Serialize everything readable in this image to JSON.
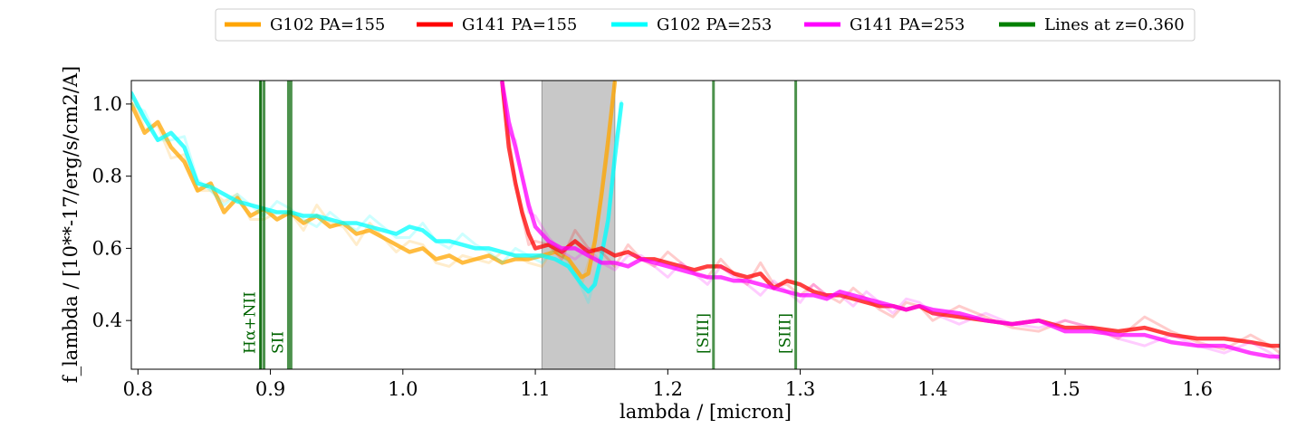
{
  "chart_data": {
    "type": "line",
    "title": "",
    "xlabel": "lambda / [micron]",
    "ylabel": "f_lambda / [10**-17/erg/s/cm2/A]",
    "xlim": [
      0.795,
      1.662
    ],
    "ylim": [
      0.265,
      1.065
    ],
    "xticks": [
      0.8,
      0.9,
      1.0,
      1.1,
      1.2,
      1.3,
      1.4,
      1.5,
      1.6
    ],
    "xtick_labels": [
      "0.8",
      "0.9",
      "1.0",
      "1.1",
      "1.2",
      "1.3",
      "1.4",
      "1.5",
      "1.6"
    ],
    "yticks": [
      0.4,
      0.6,
      0.8,
      1.0
    ],
    "ytick_labels": [
      "0.4",
      "0.6",
      "0.8",
      "1.0"
    ],
    "grid": false,
    "legend": {
      "placement": "top-center, outside plot",
      "entries": [
        {
          "label": "G102 PA=155",
          "color": "#ffa500"
        },
        {
          "label": "G141 PA=155",
          "color": "#ff0000"
        },
        {
          "label": "G102 PA=253",
          "color": "#00ffff"
        },
        {
          "label": "G141 PA=253",
          "color": "#ff00ff"
        },
        {
          "label": "Lines at z=0.360",
          "color": "#008000"
        }
      ]
    },
    "shaded_region": {
      "x": [
        1.105,
        1.16
      ],
      "color": "#c8c8c8"
    },
    "emission_lines": [
      {
        "label": "Hα+NII",
        "x": [
          0.8925,
          0.8927,
          0.8952
        ]
      },
      {
        "label": "SII",
        "x": [
          0.9136,
          0.9156
        ]
      },
      {
        "label": "[SIII]",
        "x": [
          1.2345
        ]
      },
      {
        "label": "[SIII]",
        "x": [
          1.2966
        ]
      }
    ],
    "series": [
      {
        "name": "G102 PA=155",
        "color": "#ffa500",
        "x": [
          0.795,
          0.805,
          0.815,
          0.825,
          0.835,
          0.845,
          0.855,
          0.865,
          0.875,
          0.885,
          0.895,
          0.905,
          0.915,
          0.925,
          0.935,
          0.945,
          0.955,
          0.965,
          0.975,
          0.985,
          0.995,
          1.005,
          1.015,
          1.025,
          1.035,
          1.045,
          1.055,
          1.065,
          1.075,
          1.085,
          1.095,
          1.105,
          1.115,
          1.125,
          1.135,
          1.14,
          1.145,
          1.15,
          1.155,
          1.16
        ],
        "y": [
          1.0,
          0.92,
          0.95,
          0.88,
          0.84,
          0.76,
          0.78,
          0.7,
          0.74,
          0.69,
          0.71,
          0.68,
          0.7,
          0.67,
          0.69,
          0.66,
          0.67,
          0.64,
          0.65,
          0.63,
          0.61,
          0.59,
          0.6,
          0.57,
          0.58,
          0.56,
          0.57,
          0.58,
          0.56,
          0.57,
          0.57,
          0.58,
          0.59,
          0.57,
          0.52,
          0.53,
          0.62,
          0.75,
          0.9,
          1.06
        ]
      },
      {
        "name": "G102 PA=253",
        "color": "#00ffff",
        "x": [
          0.795,
          0.805,
          0.815,
          0.825,
          0.835,
          0.845,
          0.855,
          0.865,
          0.875,
          0.885,
          0.895,
          0.905,
          0.915,
          0.925,
          0.935,
          0.945,
          0.955,
          0.965,
          0.975,
          0.985,
          0.995,
          1.005,
          1.015,
          1.025,
          1.035,
          1.045,
          1.055,
          1.065,
          1.075,
          1.085,
          1.095,
          1.105,
          1.115,
          1.125,
          1.135,
          1.14,
          1.145,
          1.15,
          1.155,
          1.16,
          1.165
        ],
        "y": [
          1.03,
          0.96,
          0.9,
          0.92,
          0.88,
          0.78,
          0.77,
          0.75,
          0.73,
          0.72,
          0.71,
          0.7,
          0.7,
          0.69,
          0.69,
          0.68,
          0.67,
          0.67,
          0.66,
          0.65,
          0.64,
          0.66,
          0.65,
          0.62,
          0.62,
          0.61,
          0.6,
          0.6,
          0.59,
          0.58,
          0.58,
          0.58,
          0.57,
          0.55,
          0.5,
          0.48,
          0.5,
          0.58,
          0.68,
          0.85,
          1.0
        ]
      },
      {
        "name": "G141 PA=155",
        "color": "#ff0000",
        "x": [
          1.075,
          1.08,
          1.085,
          1.09,
          1.095,
          1.1,
          1.11,
          1.12,
          1.13,
          1.14,
          1.15,
          1.16,
          1.17,
          1.18,
          1.19,
          1.2,
          1.21,
          1.22,
          1.23,
          1.24,
          1.25,
          1.26,
          1.27,
          1.28,
          1.29,
          1.3,
          1.31,
          1.32,
          1.33,
          1.34,
          1.35,
          1.36,
          1.37,
          1.38,
          1.39,
          1.4,
          1.42,
          1.44,
          1.46,
          1.48,
          1.5,
          1.52,
          1.54,
          1.56,
          1.58,
          1.6,
          1.62,
          1.64,
          1.655,
          1.662
        ],
        "y": [
          1.06,
          0.88,
          0.78,
          0.7,
          0.64,
          0.6,
          0.61,
          0.59,
          0.62,
          0.59,
          0.6,
          0.58,
          0.59,
          0.57,
          0.57,
          0.56,
          0.55,
          0.54,
          0.55,
          0.55,
          0.53,
          0.52,
          0.53,
          0.49,
          0.51,
          0.5,
          0.48,
          0.47,
          0.47,
          0.46,
          0.45,
          0.44,
          0.44,
          0.43,
          0.44,
          0.42,
          0.41,
          0.4,
          0.39,
          0.4,
          0.38,
          0.38,
          0.37,
          0.38,
          0.36,
          0.35,
          0.35,
          0.34,
          0.33,
          0.33
        ]
      },
      {
        "name": "G141 PA=253",
        "color": "#ff00ff",
        "x": [
          1.075,
          1.08,
          1.085,
          1.09,
          1.095,
          1.1,
          1.11,
          1.12,
          1.13,
          1.14,
          1.15,
          1.16,
          1.17,
          1.18,
          1.19,
          1.2,
          1.21,
          1.22,
          1.23,
          1.24,
          1.25,
          1.26,
          1.27,
          1.28,
          1.29,
          1.3,
          1.31,
          1.32,
          1.33,
          1.34,
          1.35,
          1.36,
          1.37,
          1.38,
          1.39,
          1.4,
          1.42,
          1.44,
          1.46,
          1.48,
          1.5,
          1.52,
          1.54,
          1.56,
          1.58,
          1.6,
          1.62,
          1.64,
          1.655,
          1.662
        ],
        "y": [
          1.06,
          0.95,
          0.88,
          0.8,
          0.72,
          0.66,
          0.62,
          0.6,
          0.6,
          0.58,
          0.56,
          0.56,
          0.55,
          0.57,
          0.56,
          0.55,
          0.54,
          0.53,
          0.52,
          0.52,
          0.51,
          0.51,
          0.5,
          0.49,
          0.48,
          0.47,
          0.47,
          0.46,
          0.48,
          0.47,
          0.46,
          0.45,
          0.44,
          0.43,
          0.44,
          0.43,
          0.42,
          0.4,
          0.39,
          0.4,
          0.37,
          0.37,
          0.36,
          0.36,
          0.34,
          0.33,
          0.33,
          0.31,
          0.3,
          0.3
        ]
      }
    ]
  }
}
